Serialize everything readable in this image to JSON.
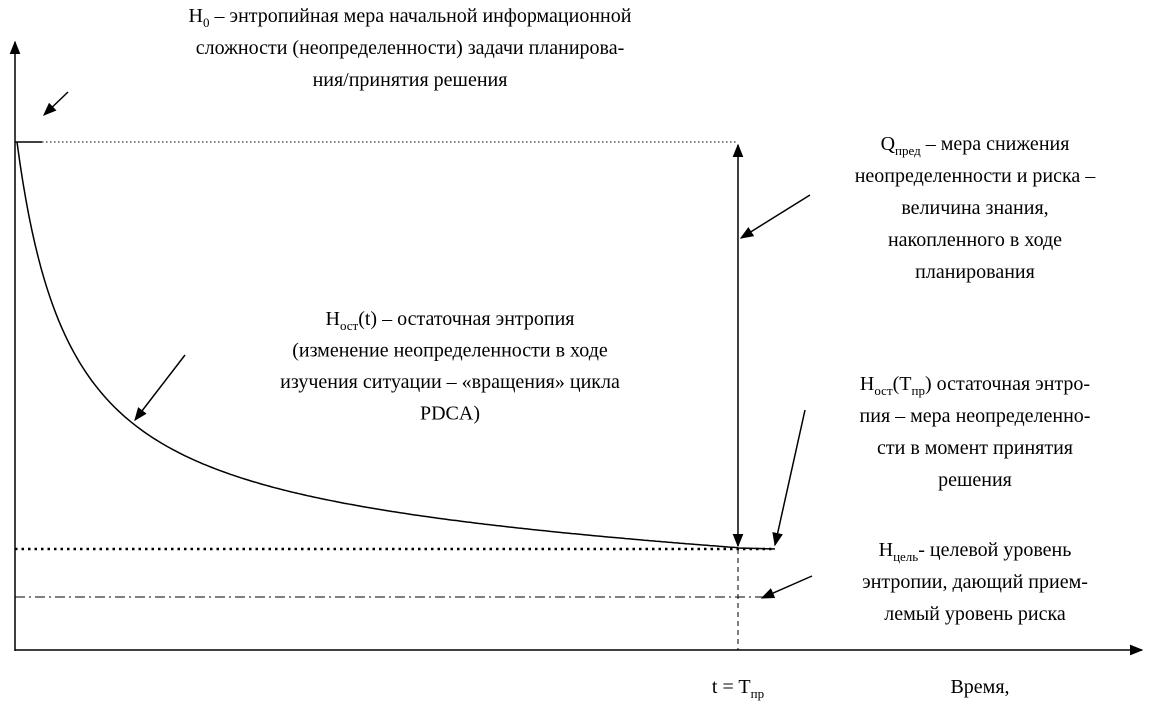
{
  "labels": {
    "h0": {
      "lines": [
        [
          "H",
          "0",
          " – энтропийная мера начальной информационной"
        ],
        [
          "сложности (неопределенности) задачи планирова-"
        ],
        [
          "ния/принятия решения"
        ]
      ]
    },
    "q": {
      "lines": [
        [
          "Q",
          "пред",
          " – мера снижения"
        ],
        [
          "неопределенности и риска –"
        ],
        [
          "величина знания,"
        ],
        [
          "накопленного в ходе"
        ],
        [
          "планирования"
        ]
      ]
    },
    "h_t": {
      "lines": [
        [
          "H",
          "ост",
          "(t) – остаточная энтропия"
        ],
        [
          "(изменение неопределенности в ходе"
        ],
        [
          "изучения ситуации – «вращения» цикла"
        ],
        [
          "PDCA)"
        ]
      ]
    },
    "h_tpr": {
      "lines": [
        [
          "H",
          "ост",
          "(T",
          "пр",
          ") остаточная энтро-"
        ],
        [
          "пия – мера неопределенно-"
        ],
        [
          "сти в момент принятия"
        ],
        [
          "решения"
        ]
      ]
    },
    "h_goal": {
      "lines": [
        [
          "H",
          "цель",
          "- целевой уровень"
        ],
        [
          "энтропии, дающий прием-"
        ],
        [
          "лемый уровень риска"
        ]
      ]
    },
    "t": {
      "lines": [
        [
          "t = T",
          "пр"
        ]
      ]
    },
    "time": {
      "lines": [
        [
          "Время,"
        ]
      ]
    }
  }
}
